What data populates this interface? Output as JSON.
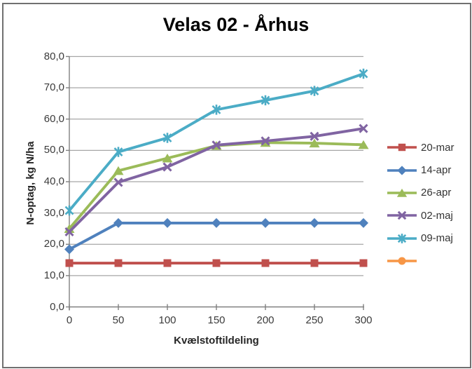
{
  "chart_data": {
    "type": "line",
    "title": "Velas 02 - Århus",
    "xlabel": "Kvælstoftildeling",
    "ylabel": "N-optag, kg N/ha",
    "categories": [
      0,
      50,
      100,
      150,
      200,
      250,
      300
    ],
    "ylim": [
      0,
      80
    ],
    "ytick_step": 10,
    "ytick_labels": [
      "0,0",
      "10,0",
      "20,0",
      "30,0",
      "40,0",
      "50,0",
      "60,0",
      "70,0",
      "80,0"
    ],
    "grid": true,
    "legend_position": "right",
    "axis_color": "#808080",
    "gridline_color": "#a6a6a6",
    "series": [
      {
        "name": "20-mar",
        "color": "#C0504D",
        "marker": "square",
        "values": [
          14,
          14,
          14,
          14,
          14,
          14,
          14
        ]
      },
      {
        "name": "14-apr",
        "color": "#4F81BD",
        "marker": "diamond",
        "values": [
          18.4,
          26.8,
          26.8,
          26.8,
          26.8,
          26.8,
          26.8
        ]
      },
      {
        "name": "26-apr",
        "color": "#9BBB59",
        "marker": "triangle",
        "values": [
          25,
          43.5,
          47.5,
          51.5,
          52.5,
          52.3,
          51.8
        ]
      },
      {
        "name": "02-maj",
        "color": "#8064A2",
        "marker": "x",
        "values": [
          24,
          39.8,
          44.7,
          51.7,
          53,
          54.5,
          57
        ]
      },
      {
        "name": "09-maj",
        "color": "#4BACC6",
        "marker": "asterisk",
        "values": [
          30.8,
          49.5,
          54,
          63,
          66,
          69,
          74.5
        ]
      },
      {
        "name": "",
        "color": "#F79646",
        "marker": "circle",
        "values": []
      }
    ]
  }
}
